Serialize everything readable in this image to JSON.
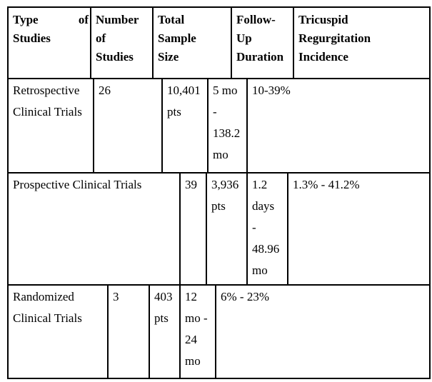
{
  "table": {
    "colors": {
      "border": "#000000",
      "text": "#000000",
      "page_background": "#ffffff"
    },
    "columns": [
      {
        "text": "Type of Studies",
        "display": "Type of\nStudies"
      },
      {
        "text": "Number of Studies",
        "display": "Number\nof\nStudies"
      },
      {
        "text": "Total Sample Size",
        "display": "Total\nSample\nSize"
      },
      {
        "text": "Follow-Up Duration",
        "display": "Follow-\nUp\nDuration"
      },
      {
        "text": "Tricuspid Regurgitation Incidence",
        "display": "Tricuspid\nRegurgitation\nIncidence"
      }
    ],
    "rows": [
      {
        "cells": [
          {
            "text": "Retrospective Clinical Trials",
            "display": "Retrospective\nClinical Trials"
          },
          {
            "text": "26",
            "display": "26"
          },
          {
            "text": "10,401 pts",
            "display": "10,401\npts"
          },
          {
            "text": "5 mo - 138.2 mo",
            "display": "5 mo\n-\n138.2\nmo"
          },
          {
            "text": "10-39%",
            "display": "10-39%"
          }
        ]
      },
      {
        "cells": [
          {
            "text": "Prospective Clinical Trials",
            "display": "Prospective Clinical Trials"
          },
          {
            "text": "39",
            "display": "39"
          },
          {
            "text": "3,936 pts",
            "display": "3,936\npts"
          },
          {
            "text": "1.2 days - 48.96 mo",
            "display": "1.2\ndays\n-\n48.96\nmo"
          },
          {
            "text": "1.3% - 41.2%",
            "display": "1.3% - 41.2%"
          }
        ]
      },
      {
        "cells": [
          {
            "text": "Randomized Clinical Trials",
            "display": "Randomized\nClinical Trials"
          },
          {
            "text": "3",
            "display": "3"
          },
          {
            "text": "403 pts",
            "display": "403\npts"
          },
          {
            "text": "12 mo - 24 mo",
            "display": "12\nmo -\n24\nmo"
          },
          {
            "text": "6% - 23%",
            "display": "6% - 23%"
          }
        ]
      }
    ]
  }
}
